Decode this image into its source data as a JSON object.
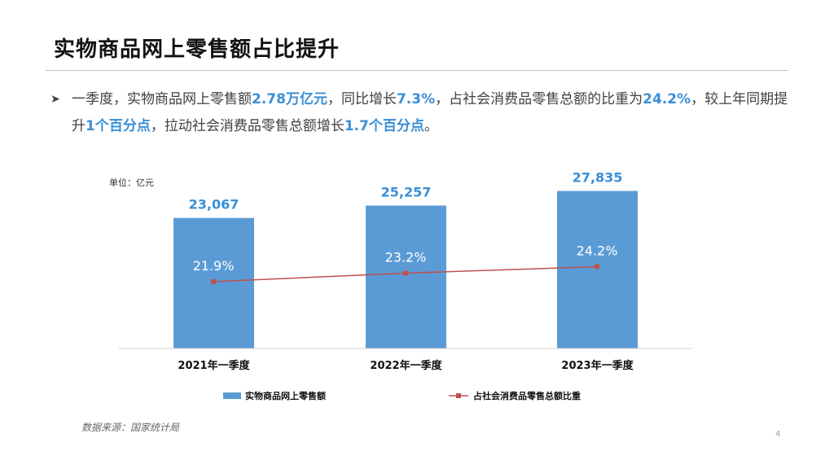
{
  "slide": {
    "title": "实物商品网上零售额占比提升",
    "bullet": {
      "p1": "一季度，实物商品网上零售额",
      "h1": "2.78万亿元",
      "p2": "，同比增长",
      "h2": "7.3%",
      "p3": "，占社会消费品零售总额的比重为",
      "h3": "24.2%",
      "p4": "，较上年同期提升",
      "h4": "1个百分点",
      "p5": "，拉动社会消费品零售总额增长",
      "h5": "1.7个百分点",
      "p6": "。"
    },
    "source": "数据来源：国家统计局",
    "page_number": "4"
  },
  "colors": {
    "bar": "#5b9bd5",
    "line": "#c0504d",
    "highlight": "#3a8fd6",
    "bar_label": "#3a8fd6",
    "inner_label": "#ffffff"
  },
  "chart_data": {
    "type": "bar",
    "unit_label": "单位：亿元",
    "categories": [
      "2021年一季度",
      "2022年一季度",
      "2023年一季度"
    ],
    "series": [
      {
        "name": "实物商品网上零售额",
        "type": "bar",
        "values": [
          23067,
          25257,
          27835
        ],
        "labels": [
          "23,067",
          "25,257",
          "27,835"
        ]
      },
      {
        "name": "占社会消费品零售总额比重",
        "type": "line",
        "values": [
          21.9,
          23.2,
          24.2
        ],
        "labels": [
          "21.9%",
          "23.2%",
          "24.2%"
        ]
      }
    ],
    "legend_position": "bottom",
    "grid": false
  }
}
